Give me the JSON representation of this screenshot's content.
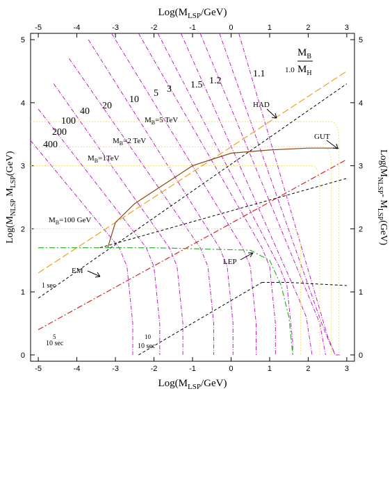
{
  "chart_data": {
    "type": "line",
    "xlabel_bottom": "Log(M",
    "xlabel_bottom_sub": "LSP",
    "xlabel_bottom_tail": "/GeV)",
    "xlabel_top": "Log(M",
    "xlabel_top_sub": "LSP",
    "xlabel_top_tail": "/GeV)",
    "ylabel_left": "Log(M",
    "ylabel_left_sub": "NLSP",
    "ylabel_left_mid": " M",
    "ylabel_left_sub2": "LSP",
    "ylabel_left_tail": "(GeV)",
    "ylabel_right": "Log(M",
    "ylabel_right_sub": "NLSP",
    "ylabel_right_mid": "- M",
    "ylabel_right_sub2": "LSP",
    "ylabel_right_tail": "(GeV)",
    "xlim": [
      -5.2,
      3.2
    ],
    "ylim": [
      -0.1,
      5.1
    ],
    "x_ticks": [
      -5,
      -4,
      -3,
      -2,
      -1,
      0,
      1,
      2,
      3
    ],
    "x_tick_labels": [
      "-5",
      "-4",
      "-3",
      "-2",
      "-1",
      "0",
      "1",
      "2",
      "3"
    ],
    "y_ticks": [
      0,
      1,
      2,
      3,
      4,
      5
    ],
    "y_tick_labels": [
      "0",
      "1",
      "2",
      "3",
      "4",
      "5"
    ],
    "ratio_contours": [
      {
        "label": "400",
        "x0": -5.2,
        "y0": 3.4,
        "x1": -2.9,
        "y1": 1.7
      },
      {
        "label": "200",
        "x0": -5.0,
        "y0": 3.9,
        "x1": -2.2,
        "y1": 1.7
      },
      {
        "label": "100",
        "x0": -4.6,
        "y0": 4.3,
        "x1": -1.6,
        "y1": 1.7
      },
      {
        "label": "40",
        "x0": -4.2,
        "y0": 4.7,
        "x1": -0.8,
        "y1": 1.7
      },
      {
        "label": "20",
        "x0": -3.7,
        "y0": 5.0,
        "x1": -0.3,
        "y1": 1.7
      },
      {
        "label": "10",
        "x0": -3.1,
        "y0": 5.1,
        "x1": 0.3,
        "y1": 1.7
      },
      {
        "label": "5",
        "x0": -2.4,
        "y0": 5.1,
        "x1": 0.8,
        "y1": 1.7
      },
      {
        "label": "3",
        "x0": -1.9,
        "y0": 5.1,
        "x1": 1.25,
        "y1": 1.4
      },
      {
        "label": "1.5",
        "x0": -1.3,
        "y0": 5.1,
        "x1": 1.75,
        "y1": 0.9
      },
      {
        "label": "1.2",
        "x0": -0.8,
        "y0": 5.1,
        "x1": 2.1,
        "y1": 0.8
      },
      {
        "label": "1.1",
        "x0": -0.3,
        "y0": 5.1,
        "x1": 2.35,
        "y1": 0.5
      },
      {
        "label": "1.0",
        "x0": 0.2,
        "y0": 5.1,
        "x1": 2.5,
        "y1": 0.3
      }
    ],
    "contour_labels": {
      "c400": "400",
      "c200": "200",
      "c100": "100",
      "c40": "40",
      "c20": "20",
      "c10": "10",
      "c5": "5",
      "c3": "3",
      "c15": "1.5",
      "c12": "1.2",
      "c11": "1.1",
      "c10b": "1.0"
    },
    "mb_lines": [
      {
        "label_pre": "M",
        "label_sub": "B",
        "label_tail": "=5 TeV",
        "y": 3.7,
        "x_end": 2.8
      },
      {
        "label_pre": "M",
        "label_sub": "B",
        "label_tail": "=2 TeV",
        "y": 3.3,
        "x_end": 2.6
      },
      {
        "label_pre": "M",
        "label_sub": "B",
        "label_tail": "=1TeV",
        "y": 3.0,
        "x_end": 2.3
      },
      {
        "label_pre": "M",
        "label_sub": "B",
        "label_tail": "=100 GeV",
        "y": 2.0,
        "x_end": 1.8
      }
    ],
    "lifetime_lines": [
      {
        "label": "1 sec",
        "color": "#000000",
        "x0": -5.0,
        "y0": 0.9,
        "x1": 3.0,
        "y1": 4.3
      },
      {
        "label": "5",
        "label_b": "10 sec",
        "color": "#000000",
        "x0": -3.4,
        "y0": 1.7,
        "x1": 3.0,
        "y1": 2.8
      },
      {
        "label": "10",
        "label_b": "10 sec",
        "color": "#000000",
        "x0": -2.4,
        "y0": 0.0,
        "x1": 0.8,
        "y1": 1.15
      }
    ],
    "bbn_lines": [
      {
        "label": "HAD",
        "color": "#f0a020",
        "x0": -5.0,
        "y0": 1.3,
        "x1": 3.0,
        "y1": 4.5
      },
      {
        "label": "EM",
        "color": "#e02020",
        "x0": -5.0,
        "y0": 0.4,
        "x1": 3.0,
        "y1": 3.1
      }
    ],
    "gut_curve": {
      "label": "GUT",
      "color": "#8b4513",
      "points": [
        [
          -3.2,
          1.7
        ],
        [
          -3.0,
          2.1
        ],
        [
          -2.5,
          2.4
        ],
        [
          -2.0,
          2.6
        ],
        [
          -1.5,
          2.8
        ],
        [
          -1.0,
          3.0
        ],
        [
          -0.5,
          3.1
        ],
        [
          0.0,
          3.2
        ],
        [
          1.0,
          3.25
        ],
        [
          2.0,
          3.28
        ],
        [
          2.8,
          3.28
        ]
      ]
    },
    "lep_curve": {
      "label": "LEP",
      "color": "#30b030",
      "points": [
        [
          -5.0,
          1.7
        ],
        [
          -2.0,
          1.7
        ],
        [
          0.5,
          1.66
        ],
        [
          1.0,
          1.5
        ],
        [
          1.3,
          1.1
        ],
        [
          1.5,
          0.6
        ],
        [
          1.6,
          0.0
        ]
      ]
    },
    "legend": {
      "m_b": "M",
      "m_b_sub": "B",
      "m_h": "M",
      "m_h_sub": "H"
    }
  }
}
